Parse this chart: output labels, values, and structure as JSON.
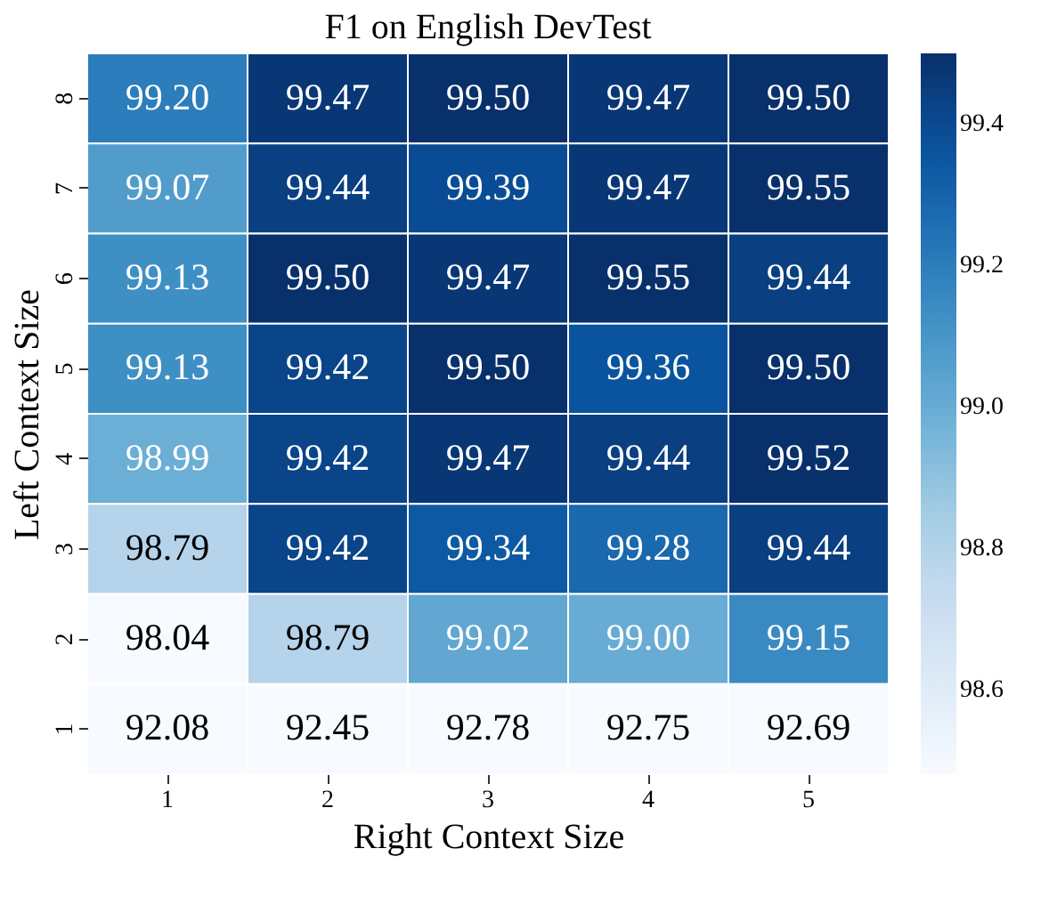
{
  "chart_data": {
    "type": "heatmap",
    "title": "F1 on English DevTest",
    "xlabel": "Right Context Size",
    "ylabel": "Left Context Size",
    "categories": [
      "1",
      "2",
      "3",
      "4",
      "5"
    ],
    "y_categories": [
      "8",
      "7",
      "6",
      "5",
      "4",
      "3",
      "2",
      "1"
    ],
    "cells": [
      [
        99.2,
        99.47,
        99.5,
        99.47,
        99.5
      ],
      [
        99.07,
        99.44,
        99.39,
        99.47,
        99.55
      ],
      [
        99.13,
        99.5,
        99.47,
        99.55,
        99.44
      ],
      [
        99.13,
        99.42,
        99.5,
        99.36,
        99.5
      ],
      [
        98.99,
        99.42,
        99.47,
        99.44,
        99.52
      ],
      [
        98.79,
        99.42,
        99.34,
        99.28,
        99.44
      ],
      [
        98.04,
        98.79,
        99.02,
        99.0,
        99.15
      ],
      [
        92.08,
        92.45,
        92.78,
        92.75,
        92.69
      ]
    ],
    "cell_labels": [
      [
        "99.20",
        "99.47",
        "99.50",
        "99.47",
        "99.50"
      ],
      [
        "99.07",
        "99.44",
        "99.39",
        "99.47",
        "99.55"
      ],
      [
        "99.13",
        "99.50",
        "99.47",
        "99.55",
        "99.44"
      ],
      [
        "99.13",
        "99.42",
        "99.50",
        "99.36",
        "99.50"
      ],
      [
        "98.99",
        "99.42",
        "99.47",
        "99.44",
        "99.52"
      ],
      [
        "98.79",
        "99.42",
        "99.34",
        "99.28",
        "99.44"
      ],
      [
        "98.04",
        "98.79",
        "99.02",
        "99.00",
        "99.15"
      ],
      [
        "92.08",
        "92.45",
        "92.78",
        "92.75",
        "92.69"
      ]
    ],
    "clim": [
      98.48,
      99.5
    ],
    "cticks": [
      98.6,
      98.8,
      {
        "value": 99.0,
        "label": "99.0"
      },
      99.2,
      99.4
    ]
  }
}
